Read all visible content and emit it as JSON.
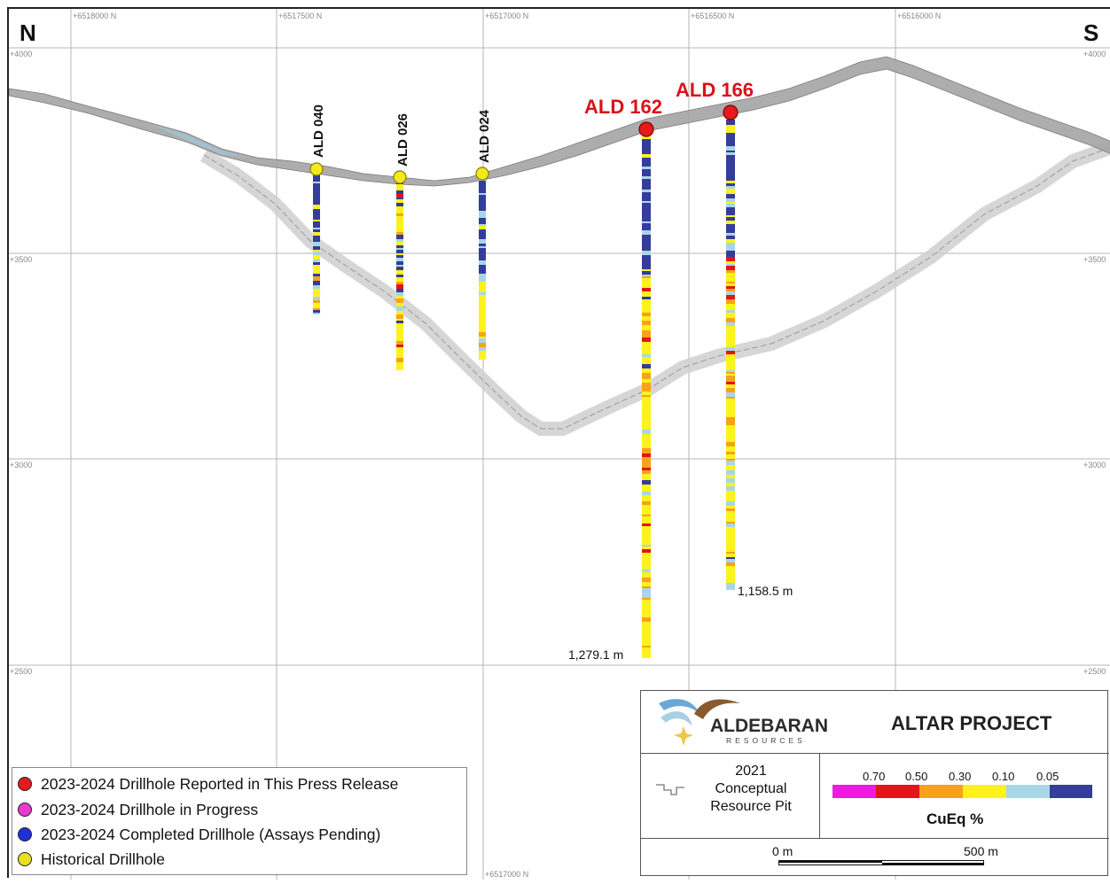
{
  "directions": {
    "north": "N",
    "south": "S"
  },
  "northings": [
    "+6518000 N",
    "+6517500 N",
    "+6517000 N",
    "+6516500 N",
    "+6516000 N"
  ],
  "bottom_northing": "+6517000 N",
  "elevations": [
    "+4000",
    "+3500",
    "+3000",
    "+2500"
  ],
  "drillholes": [
    {
      "id": "ALD 040",
      "type": "historical",
      "end_depth_label": ""
    },
    {
      "id": "ALD 026",
      "type": "historical",
      "end_depth_label": ""
    },
    {
      "id": "ALD 024",
      "type": "historical",
      "end_depth_label": ""
    },
    {
      "id": "ALD 162",
      "type": "reported",
      "end_depth_label": "1,279.1 m"
    },
    {
      "id": "ALD 166",
      "type": "reported",
      "end_depth_label": "1,158.5 m"
    }
  ],
  "legend": {
    "items": [
      {
        "label": "2023-2024 Drillhole Reported in This Press Release",
        "color": "#e41a1c"
      },
      {
        "label": "2023-2024 Drillhole in Progress",
        "color": "#e83ad0"
      },
      {
        "label": "2023-2024 Completed Drillhole (Assays Pending)",
        "color": "#2030d8"
      },
      {
        "label": "Historical Drillhole",
        "color": "#e8e020"
      }
    ]
  },
  "titlebox": {
    "company": "ALDEBARAN",
    "company_sub": "RESOURCES",
    "project": "ALTAR PROJECT",
    "pit_label_lines": [
      "2021",
      "Conceptual",
      "Resource Pit"
    ],
    "colorscale": {
      "labels": [
        "0.70",
        "0.50",
        "0.30",
        "0.10",
        "0.05"
      ],
      "colors": [
        "#f019e0",
        "#e3141b",
        "#f6a21a",
        "#fef21c",
        "#a8d6e6",
        "#343d99"
      ],
      "title": "CuEq %"
    },
    "scalebar": {
      "start_label": "0 m",
      "end_label": "500 m"
    }
  }
}
